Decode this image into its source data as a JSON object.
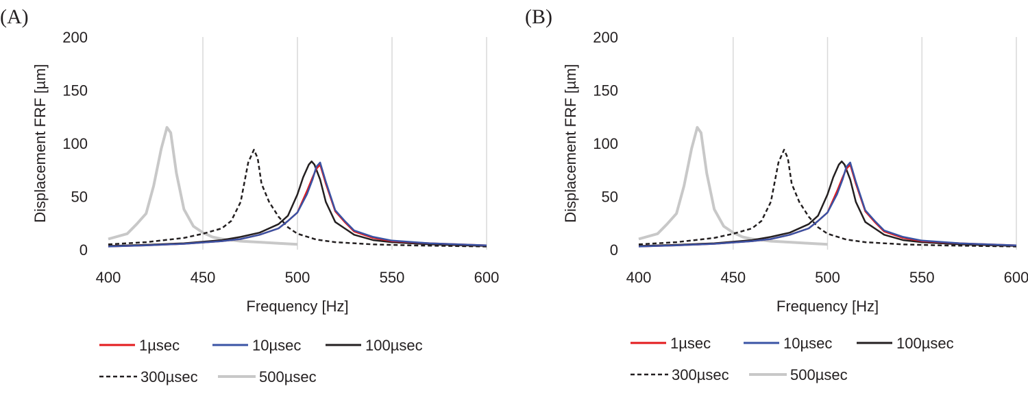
{
  "chart_data": [
    {
      "type": "line",
      "panel_label": "(A)",
      "xlabel": "Frequency [Hz]",
      "ylabel": "Displacement FRF [µm]",
      "xlim": [
        400,
        600
      ],
      "ylim": [
        0,
        200
      ],
      "xticks": [
        "400",
        "450",
        "500",
        "550",
        "600"
      ],
      "yticks": [
        "0",
        "50",
        "100",
        "150",
        "200"
      ],
      "grid": "vertical",
      "legend_position": "bottom",
      "series": [
        {
          "name": "1µsec",
          "color": "#e31a1c",
          "dash": "solid",
          "points": [
            [
              400,
              3
            ],
            [
              420,
              4
            ],
            [
              440,
              5.5
            ],
            [
              460,
              8
            ],
            [
              470,
              10
            ],
            [
              480,
              14
            ],
            [
              490,
              20
            ],
            [
              495,
              27
            ],
            [
              500,
              35
            ],
            [
              505,
              55
            ],
            [
              508,
              68
            ],
            [
              510,
              76
            ],
            [
              512,
              80
            ],
            [
              515,
              62
            ],
            [
              520,
              36
            ],
            [
              525,
              26
            ],
            [
              530,
              17
            ],
            [
              540,
              11
            ],
            [
              550,
              8
            ],
            [
              570,
              6
            ],
            [
              600,
              4
            ]
          ]
        },
        {
          "name": "10µsec",
          "color": "#3953a4",
          "dash": "solid",
          "points": [
            [
              400,
              3
            ],
            [
              420,
              4
            ],
            [
              440,
              5.5
            ],
            [
              460,
              8
            ],
            [
              470,
              10
            ],
            [
              480,
              14
            ],
            [
              490,
              20
            ],
            [
              495,
              27
            ],
            [
              500,
              35
            ],
            [
              505,
              52
            ],
            [
              508,
              66
            ],
            [
              510,
              78
            ],
            [
              512,
              82
            ],
            [
              515,
              64
            ],
            [
              520,
              37
            ],
            [
              525,
              27
            ],
            [
              530,
              18
            ],
            [
              540,
              12
            ],
            [
              550,
              8.5
            ],
            [
              570,
              6
            ],
            [
              600,
              4
            ]
          ]
        },
        {
          "name": "100µsec",
          "color": "#231f20",
          "dash": "solid",
          "points": [
            [
              400,
              3.5
            ],
            [
              420,
              4.5
            ],
            [
              440,
              6
            ],
            [
              460,
              9
            ],
            [
              470,
              12
            ],
            [
              480,
              16
            ],
            [
              490,
              24
            ],
            [
              495,
              32
            ],
            [
              500,
              52
            ],
            [
              503,
              68
            ],
            [
              506,
              80
            ],
            [
              507.5,
              83
            ],
            [
              509,
              80
            ],
            [
              512,
              66
            ],
            [
              515,
              45
            ],
            [
              520,
              26
            ],
            [
              525,
              20
            ],
            [
              530,
              14
            ],
            [
              540,
              9
            ],
            [
              550,
              7
            ],
            [
              570,
              5
            ],
            [
              600,
              3.5
            ]
          ]
        },
        {
          "name": "300µsec",
          "color": "#231f20",
          "dash": "dashed",
          "points": [
            [
              400,
              5
            ],
            [
              420,
              7
            ],
            [
              440,
              11
            ],
            [
              450,
              15
            ],
            [
              460,
              20
            ],
            [
              465,
              27
            ],
            [
              470,
              45
            ],
            [
              474,
              82
            ],
            [
              477,
              94
            ],
            [
              479,
              86
            ],
            [
              481,
              62
            ],
            [
              485,
              45
            ],
            [
              490,
              31
            ],
            [
              495,
              21
            ],
            [
              500,
              15
            ],
            [
              510,
              9.5
            ],
            [
              520,
              7
            ],
            [
              540,
              5
            ],
            [
              560,
              4
            ],
            [
              580,
              3.5
            ],
            [
              600,
              3
            ]
          ]
        },
        {
          "name": "500µsec",
          "color": "#c8c8c8",
          "dash": "solid",
          "points": [
            [
              400,
              10
            ],
            [
              410,
              15
            ],
            [
              415,
              24
            ],
            [
              420,
              34
            ],
            [
              424,
              60
            ],
            [
              428,
              95
            ],
            [
              431,
              115
            ],
            [
              433,
              110
            ],
            [
              436,
              72
            ],
            [
              440,
              38
            ],
            [
              445,
              22
            ],
            [
              450,
              16
            ],
            [
              455,
              12
            ],
            [
              460,
              10
            ],
            [
              470,
              8
            ],
            [
              480,
              7
            ],
            [
              490,
              6
            ],
            [
              500,
              5
            ]
          ]
        }
      ]
    },
    {
      "type": "line",
      "panel_label": "(B)",
      "xlabel": "Frequency [Hz]",
      "ylabel": "Displacement FRF [µm]",
      "xlim": [
        400,
        600
      ],
      "ylim": [
        0,
        200
      ],
      "xticks": [
        "400",
        "450",
        "500",
        "550",
        "600"
      ],
      "yticks": [
        "0",
        "50",
        "100",
        "150",
        "200"
      ],
      "grid": "vertical",
      "legend_position": "bottom",
      "series": [
        {
          "name": "1µsec",
          "color": "#e31a1c",
          "dash": "solid",
          "points": [
            [
              400,
              3
            ],
            [
              420,
              4
            ],
            [
              440,
              5.5
            ],
            [
              460,
              8
            ],
            [
              470,
              10
            ],
            [
              480,
              14
            ],
            [
              490,
              20
            ],
            [
              495,
              27
            ],
            [
              500,
              35
            ],
            [
              505,
              55
            ],
            [
              508,
              68
            ],
            [
              510,
              76
            ],
            [
              512,
              80
            ],
            [
              515,
              62
            ],
            [
              520,
              36
            ],
            [
              525,
              26
            ],
            [
              530,
              17
            ],
            [
              540,
              11
            ],
            [
              550,
              8
            ],
            [
              570,
              6
            ],
            [
              600,
              4
            ]
          ]
        },
        {
          "name": "10µsec",
          "color": "#3953a4",
          "dash": "solid",
          "points": [
            [
              400,
              3
            ],
            [
              420,
              4
            ],
            [
              440,
              5.5
            ],
            [
              460,
              8
            ],
            [
              470,
              10
            ],
            [
              480,
              14
            ],
            [
              490,
              20
            ],
            [
              495,
              27
            ],
            [
              500,
              35
            ],
            [
              505,
              52
            ],
            [
              508,
              66
            ],
            [
              510,
              78
            ],
            [
              512,
              82
            ],
            [
              515,
              64
            ],
            [
              520,
              37
            ],
            [
              525,
              27
            ],
            [
              530,
              18
            ],
            [
              540,
              12
            ],
            [
              550,
              8.5
            ],
            [
              570,
              6
            ],
            [
              600,
              4
            ]
          ]
        },
        {
          "name": "100µsec",
          "color": "#231f20",
          "dash": "solid",
          "points": [
            [
              400,
              3.5
            ],
            [
              420,
              4.5
            ],
            [
              440,
              6
            ],
            [
              460,
              9
            ],
            [
              470,
              12
            ],
            [
              480,
              16
            ],
            [
              490,
              24
            ],
            [
              495,
              32
            ],
            [
              500,
              52
            ],
            [
              503,
              68
            ],
            [
              506,
              80
            ],
            [
              507.5,
              83
            ],
            [
              509,
              80
            ],
            [
              512,
              66
            ],
            [
              515,
              45
            ],
            [
              520,
              26
            ],
            [
              525,
              20
            ],
            [
              530,
              14
            ],
            [
              540,
              9
            ],
            [
              550,
              7
            ],
            [
              570,
              5
            ],
            [
              600,
              3.5
            ]
          ]
        },
        {
          "name": "300µsec",
          "color": "#231f20",
          "dash": "dashed",
          "points": [
            [
              400,
              5
            ],
            [
              420,
              7
            ],
            [
              440,
              11
            ],
            [
              450,
              15
            ],
            [
              460,
              20
            ],
            [
              465,
              27
            ],
            [
              470,
              45
            ],
            [
              474,
              82
            ],
            [
              477,
              94
            ],
            [
              479,
              86
            ],
            [
              481,
              62
            ],
            [
              485,
              45
            ],
            [
              490,
              31
            ],
            [
              495,
              21
            ],
            [
              500,
              15
            ],
            [
              510,
              9.5
            ],
            [
              520,
              7
            ],
            [
              540,
              5
            ],
            [
              560,
              4
            ],
            [
              580,
              3.5
            ],
            [
              600,
              3
            ]
          ]
        },
        {
          "name": "500µsec",
          "color": "#c8c8c8",
          "dash": "solid",
          "points": [
            [
              400,
              10
            ],
            [
              410,
              15
            ],
            [
              415,
              24
            ],
            [
              420,
              34
            ],
            [
              424,
              60
            ],
            [
              428,
              95
            ],
            [
              431,
              115
            ],
            [
              433,
              110
            ],
            [
              436,
              72
            ],
            [
              440,
              38
            ],
            [
              445,
              22
            ],
            [
              450,
              16
            ],
            [
              455,
              12
            ],
            [
              460,
              10
            ],
            [
              470,
              8
            ],
            [
              480,
              7
            ],
            [
              490,
              6
            ],
            [
              500,
              5
            ]
          ]
        }
      ]
    }
  ]
}
